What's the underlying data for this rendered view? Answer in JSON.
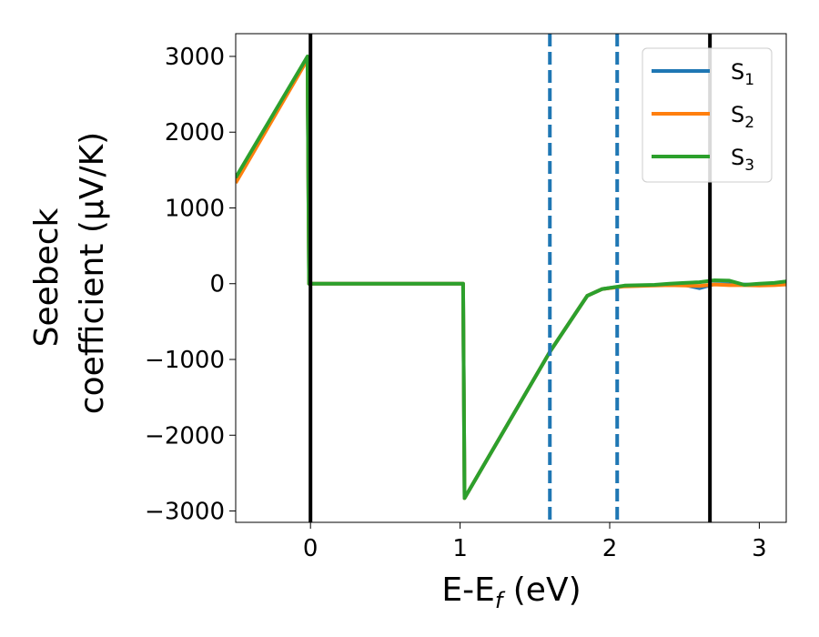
{
  "chart_data": {
    "type": "line",
    "xlabel_main": "E-E",
    "xlabel_sub": "f",
    "xlabel_unit": " (eV)",
    "ylabel_line1": "Seebeck",
    "ylabel_line2": "coefficient  (μV/K)",
    "xlim": [
      -0.5,
      3.18
    ],
    "ylim": [
      -3150,
      3300
    ],
    "x_ticks": [
      0,
      1,
      2,
      3
    ],
    "x_tick_labels": [
      "0",
      "1",
      "2",
      "3"
    ],
    "y_ticks": [
      3000,
      2000,
      1000,
      0,
      -1000,
      -2000,
      -3000
    ],
    "y_tick_labels": [
      "3000",
      "2000",
      "1000",
      "0",
      "−1000",
      "−2000",
      "−3000"
    ],
    "legend_position": "top-right",
    "series": [
      {
        "name": "S",
        "name_sub": "1",
        "color": "#1f77b4",
        "x": [
          -0.5,
          -0.02,
          -0.01,
          1.02,
          1.03,
          1.6,
          1.85,
          1.95,
          2.1,
          2.2,
          2.3,
          2.4,
          2.5,
          2.6,
          2.7,
          2.8,
          2.9,
          3.0,
          3.1,
          3.18
        ],
        "y": [
          1380,
          2980,
          0,
          0,
          -2830,
          -900,
          -160,
          -70,
          -30,
          -25,
          -20,
          -10,
          -15,
          -60,
          -5,
          -5,
          -10,
          -20,
          -5,
          0
        ]
      },
      {
        "name": "S",
        "name_sub": "2",
        "color": "#ff7f0e",
        "x": [
          -0.5,
          -0.02,
          -0.01,
          1.02,
          1.03,
          1.6,
          1.85,
          1.95,
          2.1,
          2.2,
          2.3,
          2.4,
          2.5,
          2.6,
          2.7,
          2.8,
          2.9,
          3.0,
          3.1,
          3.18
        ],
        "y": [
          1330,
          2960,
          0,
          0,
          -2830,
          -900,
          -160,
          -70,
          -35,
          -30,
          -25,
          -20,
          -25,
          -30,
          -10,
          -20,
          -20,
          -25,
          -20,
          -10
        ]
      },
      {
        "name": "S",
        "name_sub": "3",
        "color": "#2ca02c",
        "x": [
          -0.5,
          -0.02,
          -0.01,
          1.02,
          1.03,
          1.6,
          1.85,
          1.95,
          2.1,
          2.2,
          2.3,
          2.4,
          2.5,
          2.6,
          2.7,
          2.8,
          2.9,
          3.0,
          3.1,
          3.18
        ],
        "y": [
          1400,
          3000,
          0,
          0,
          -2830,
          -900,
          -160,
          -70,
          -25,
          -20,
          -15,
          0,
          10,
          20,
          45,
          40,
          -15,
          0,
          10,
          30
        ]
      }
    ],
    "vlines": [
      {
        "x": 0.0,
        "style": "solid",
        "color": "#000000"
      },
      {
        "x": 1.6,
        "style": "dashed",
        "color": "#1f77b4"
      },
      {
        "x": 2.05,
        "style": "dashed",
        "color": "#1f77b4"
      },
      {
        "x": 2.67,
        "style": "solid",
        "color": "#000000"
      }
    ]
  }
}
